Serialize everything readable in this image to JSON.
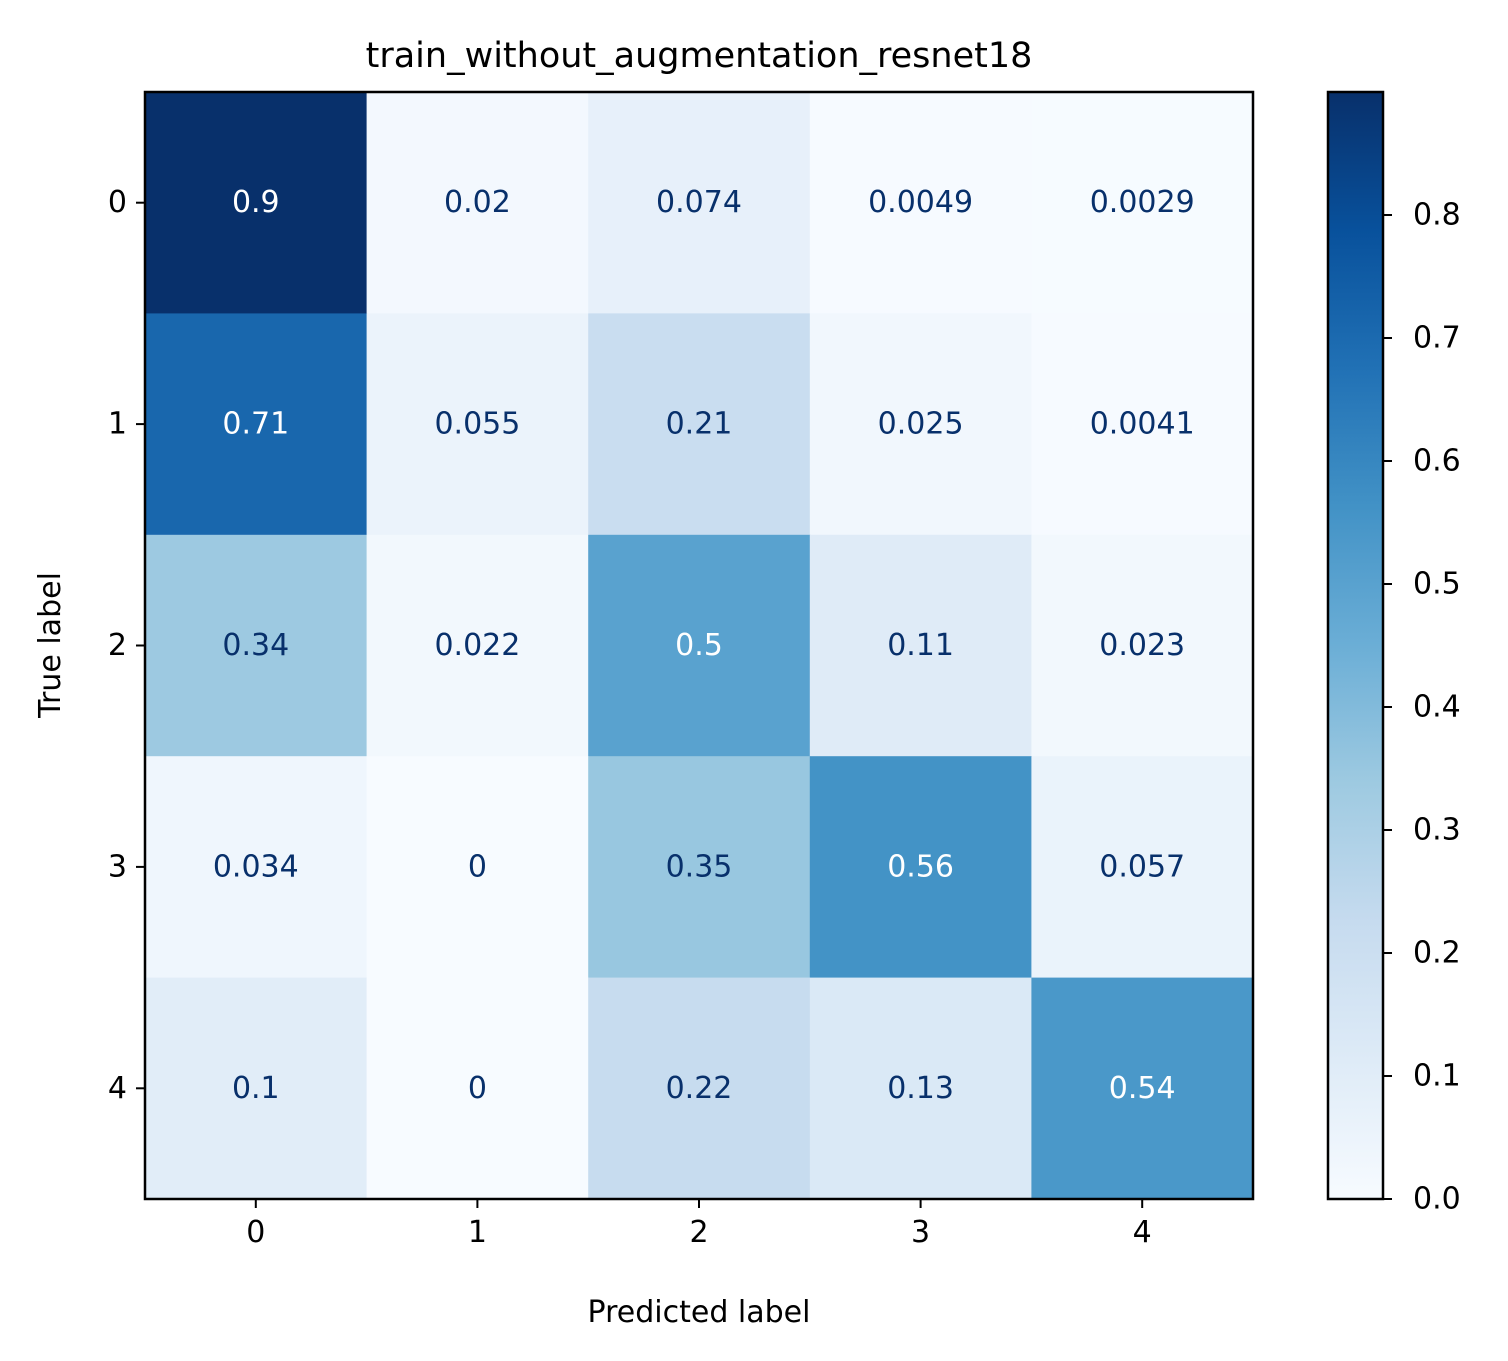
{
  "chart_data": {
    "type": "heatmap",
    "title": "train_without_augmentation_resnet18",
    "xlabel": "Predicted label",
    "ylabel": "True label",
    "x_categories": [
      "0",
      "1",
      "2",
      "3",
      "4"
    ],
    "y_categories": [
      "0",
      "1",
      "2",
      "3",
      "4"
    ],
    "values": [
      [
        0.9,
        0.02,
        0.074,
        0.0049,
        0.0029
      ],
      [
        0.71,
        0.055,
        0.21,
        0.025,
        0.0041
      ],
      [
        0.34,
        0.022,
        0.5,
        0.11,
        0.023
      ],
      [
        0.034,
        0,
        0.35,
        0.56,
        0.057
      ],
      [
        0.1,
        0,
        0.22,
        0.13,
        0.54
      ]
    ],
    "value_labels": [
      [
        "0.9",
        "0.02",
        "0.074",
        "0.0049",
        "0.0029"
      ],
      [
        "0.71",
        "0.055",
        "0.21",
        "0.025",
        "0.0041"
      ],
      [
        "0.34",
        "0.022",
        "0.5",
        "0.11",
        "0.023"
      ],
      [
        "0.034",
        "0",
        "0.35",
        "0.56",
        "0.057"
      ],
      [
        "0.1",
        "0",
        "0.22",
        "0.13",
        "0.54"
      ]
    ],
    "colormap": "Blues",
    "colorbar": {
      "range": [
        0,
        0.9
      ],
      "ticks": [
        0,
        0.1,
        0.2,
        0.3,
        0.4,
        0.5,
        0.6,
        0.7,
        0.8
      ],
      "tick_labels": [
        "0.0",
        "0.1",
        "0.2",
        "0.3",
        "0.4",
        "0.5",
        "0.6",
        "0.7",
        "0.8"
      ]
    },
    "text_colors": {
      "dark": "#08306b",
      "light": "#ffffff"
    },
    "grid": false
  }
}
